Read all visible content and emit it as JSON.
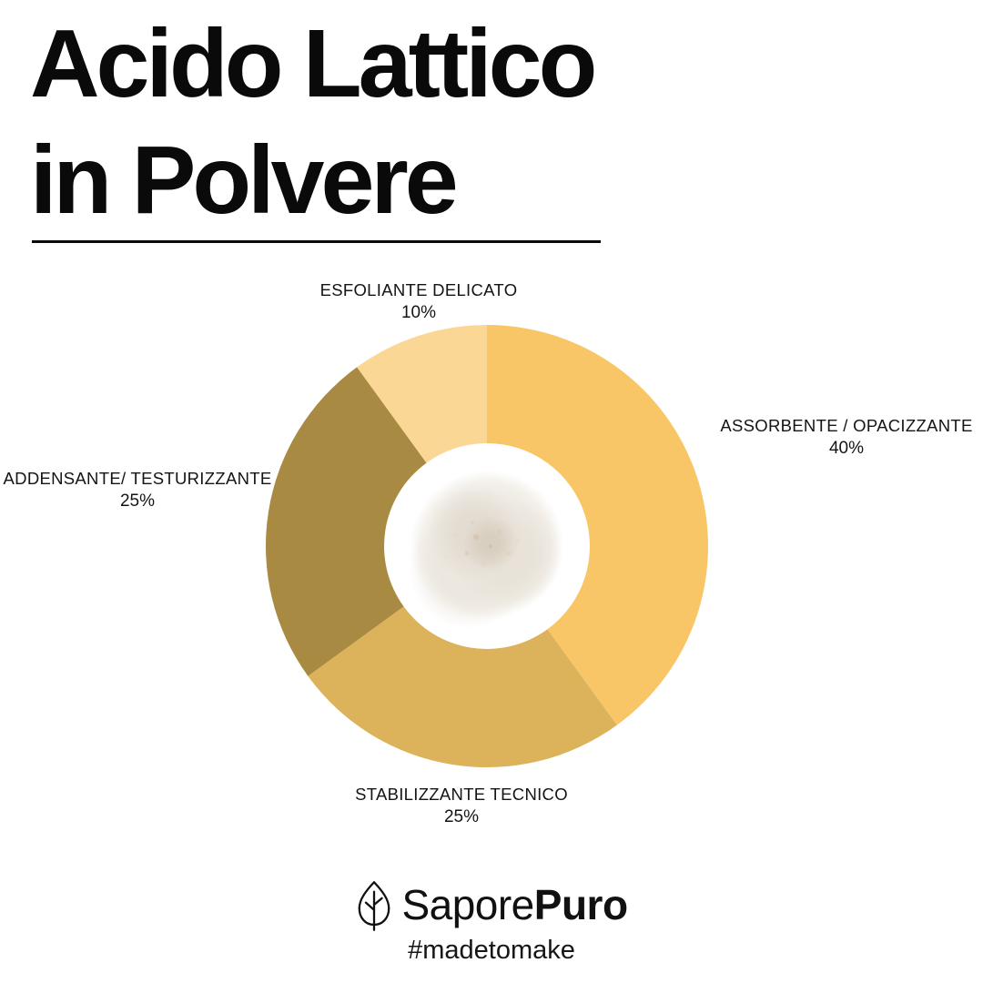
{
  "title": {
    "line1": "Acido Lattico",
    "line2": "in Polvere"
  },
  "chart_data": {
    "type": "pie",
    "subtype": "donut",
    "title": "Acido Lattico in Polvere",
    "start_angle_deg": 0,
    "direction": "clockwise",
    "legend_position": "labels-around-chart",
    "center_image": "white-powder-pile-photo",
    "slices": [
      {
        "label": "ASSORBENTE / OPACIZZANTE",
        "value": 40,
        "value_text": "40%",
        "color": "#F8C666"
      },
      {
        "label": "STABILIZZANTE TECNICO",
        "value": 25,
        "value_text": "25%",
        "color": "#DCB25B"
      },
      {
        "label": "ADDENSANTE/ TESTURIZZANTE",
        "value": 25,
        "value_text": "25%",
        "color": "#A98A42"
      },
      {
        "label": "ESFOLIANTE DELICATO",
        "value": 10,
        "value_text": "10%",
        "color": "#FBD795"
      }
    ]
  },
  "footer": {
    "brand_regular": "Sapore",
    "brand_bold": "Puro",
    "hashtag": "#madetomake"
  },
  "colors": {
    "background": "#FFFFFF",
    "text": "#111111"
  }
}
